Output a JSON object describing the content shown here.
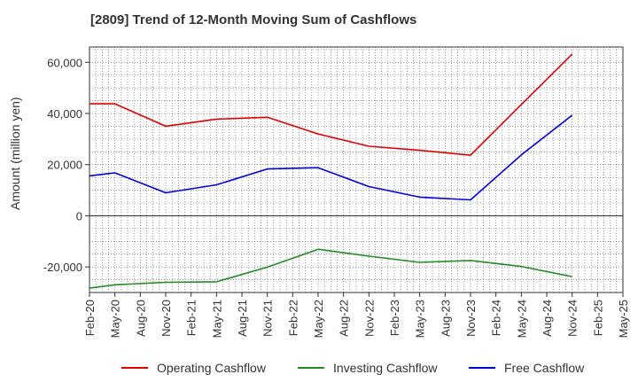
{
  "chart_data": {
    "type": "line",
    "title": "[2809]  Trend of 12-Month Moving Sum of Cashflows",
    "ylabel": "Amount (million yen)",
    "xlabel": "",
    "ylim": [
      -30000,
      66000
    ],
    "yticks": [
      -20000,
      0,
      20000,
      40000,
      60000
    ],
    "ytick_labels": [
      "-20,000",
      "0",
      "20,000",
      "40,000",
      "60,000"
    ],
    "categories": [
      "Feb-20",
      "May-20",
      "Aug-20",
      "Nov-20",
      "Feb-21",
      "May-21",
      "Aug-21",
      "Nov-21",
      "Feb-22",
      "May-22",
      "Aug-22",
      "Nov-22",
      "Feb-23",
      "May-23",
      "Aug-23",
      "Nov-23",
      "Feb-24",
      "May-24",
      "Aug-24",
      "Nov-24",
      "Feb-25",
      "May-25"
    ],
    "grid": true,
    "legend_position": "bottom",
    "series": [
      {
        "name": "Operating Cashflow",
        "color": "#e00000",
        "values": [
          43800,
          43800,
          null,
          35000,
          null,
          37800,
          null,
          38500,
          null,
          32000,
          null,
          27200,
          null,
          25600,
          null,
          23700,
          null,
          43500,
          null,
          63200,
          null,
          null
        ]
      },
      {
        "name": "Investing Cashflow",
        "color": "#228b22",
        "values": [
          -28300,
          -27000,
          null,
          -26000,
          null,
          -25800,
          null,
          -20100,
          null,
          -13100,
          null,
          -15800,
          null,
          -18200,
          null,
          -17500,
          null,
          -19800,
          null,
          -23800,
          null,
          null
        ]
      },
      {
        "name": "Free Cashflow",
        "color": "#0000dd",
        "values": [
          15600,
          16800,
          null,
          9000,
          null,
          12100,
          null,
          18300,
          null,
          18800,
          null,
          11400,
          null,
          7300,
          null,
          6200,
          null,
          23800,
          null,
          39300,
          null,
          null
        ]
      }
    ]
  }
}
